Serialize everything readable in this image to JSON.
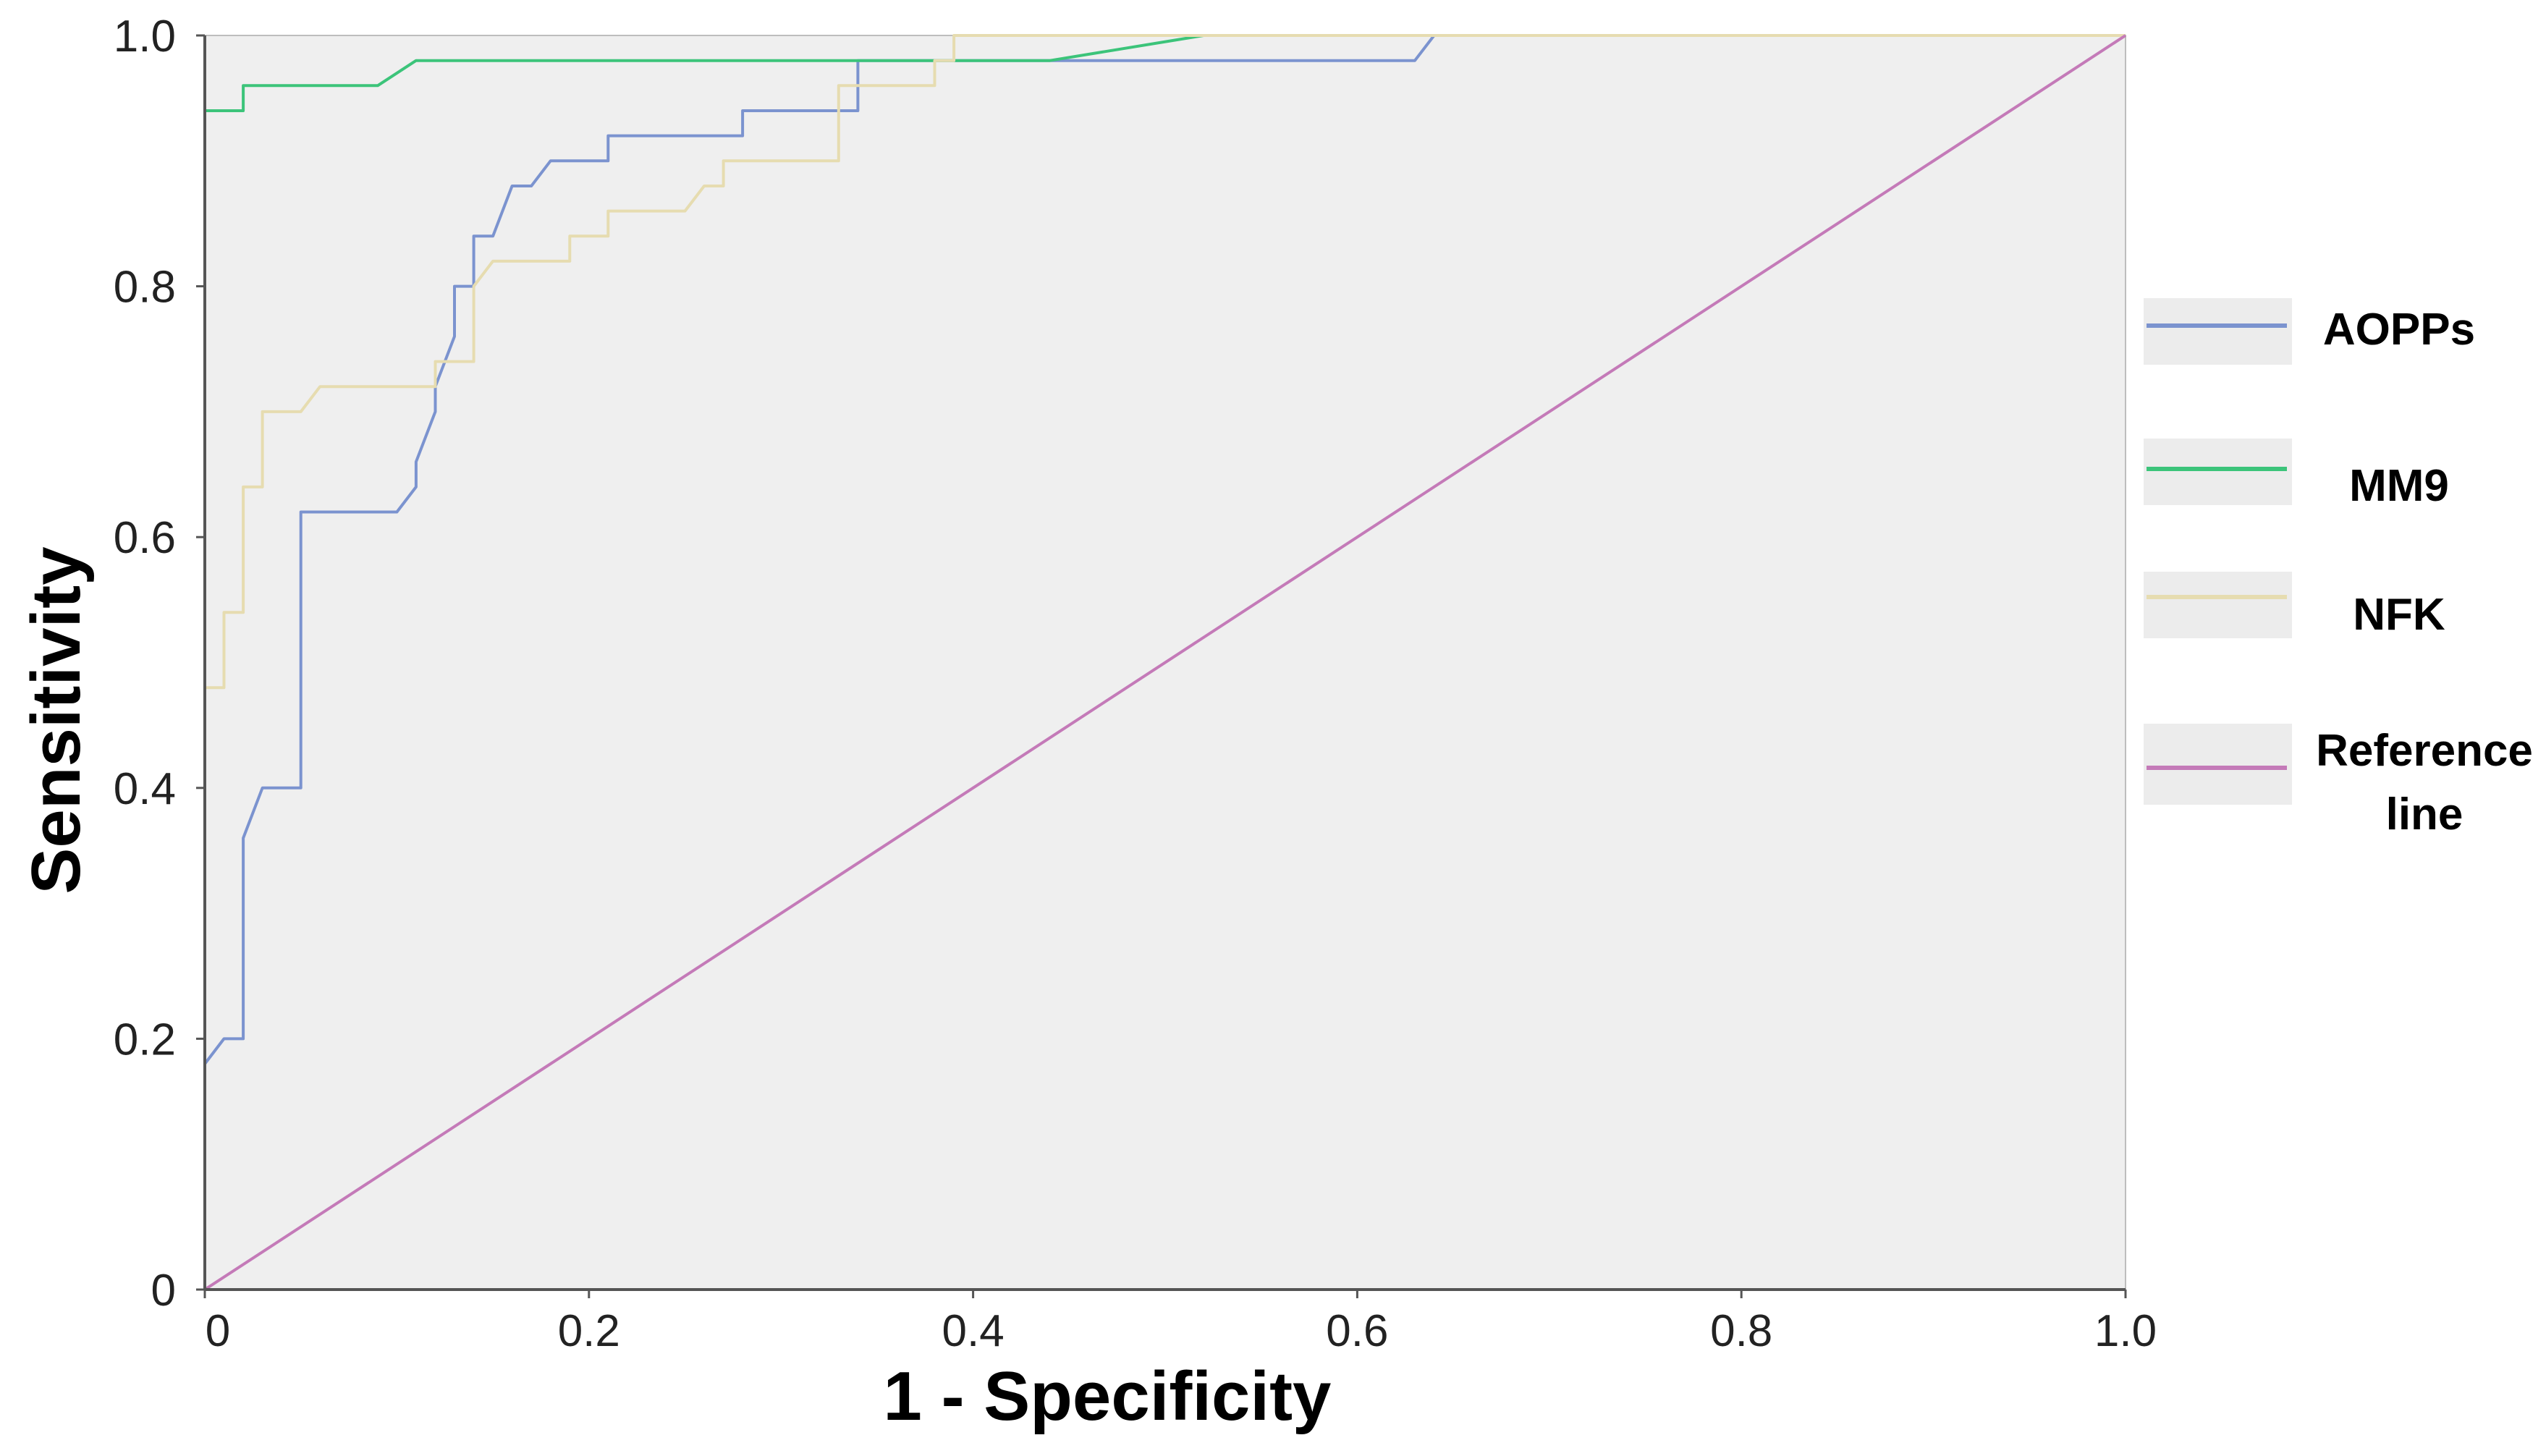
{
  "chart_data": {
    "type": "line",
    "title": "",
    "xlabel": "1 - Specificity",
    "ylabel": "Sensitivity",
    "xlim": [
      0,
      1
    ],
    "ylim": [
      0,
      1
    ],
    "x_ticks": [
      0,
      0.2,
      0.4,
      0.6,
      0.8,
      1.0
    ],
    "x_tick_labels": [
      "0",
      "0.2",
      "0.4",
      "0.6",
      "0.8",
      "1.0"
    ],
    "y_ticks": [
      0,
      0.2,
      0.4,
      0.6,
      0.8,
      1.0
    ],
    "y_tick_labels": [
      "0",
      "0.2",
      "0.4",
      "0.6",
      "0.8",
      "1.0"
    ],
    "grid": false,
    "legend_position": "right",
    "plot_background": "#efefef",
    "series": [
      {
        "name": "AOPPs",
        "color": "#7b93cf",
        "points": [
          [
            0,
            0.18
          ],
          [
            0.01,
            0.2
          ],
          [
            0.02,
            0.2
          ],
          [
            0.02,
            0.36
          ],
          [
            0.03,
            0.4
          ],
          [
            0.05,
            0.4
          ],
          [
            0.05,
            0.62
          ],
          [
            0.1,
            0.62
          ],
          [
            0.11,
            0.64
          ],
          [
            0.11,
            0.66
          ],
          [
            0.12,
            0.7
          ],
          [
            0.12,
            0.72
          ],
          [
            0.13,
            0.76
          ],
          [
            0.13,
            0.8
          ],
          [
            0.14,
            0.8
          ],
          [
            0.14,
            0.84
          ],
          [
            0.15,
            0.84
          ],
          [
            0.16,
            0.88
          ],
          [
            0.17,
            0.88
          ],
          [
            0.18,
            0.9
          ],
          [
            0.21,
            0.9
          ],
          [
            0.21,
            0.92
          ],
          [
            0.28,
            0.92
          ],
          [
            0.28,
            0.94
          ],
          [
            0.34,
            0.94
          ],
          [
            0.34,
            0.98
          ],
          [
            0.63,
            0.98
          ],
          [
            0.64,
            1.0
          ],
          [
            1.0,
            1.0
          ]
        ]
      },
      {
        "name": "MM9",
        "color": "#3cc47a",
        "points": [
          [
            0,
            0.94
          ],
          [
            0.02,
            0.94
          ],
          [
            0.02,
            0.96
          ],
          [
            0.09,
            0.96
          ],
          [
            0.11,
            0.98
          ],
          [
            0.44,
            0.98
          ],
          [
            0.52,
            1.0
          ],
          [
            1.0,
            1.0
          ]
        ]
      },
      {
        "name": "NFK",
        "color": "#e6dcb0",
        "points": [
          [
            0,
            0.48
          ],
          [
            0.01,
            0.48
          ],
          [
            0.01,
            0.54
          ],
          [
            0.02,
            0.54
          ],
          [
            0.02,
            0.64
          ],
          [
            0.03,
            0.64
          ],
          [
            0.03,
            0.7
          ],
          [
            0.05,
            0.7
          ],
          [
            0.06,
            0.72
          ],
          [
            0.12,
            0.72
          ],
          [
            0.12,
            0.74
          ],
          [
            0.14,
            0.74
          ],
          [
            0.14,
            0.8
          ],
          [
            0.15,
            0.82
          ],
          [
            0.19,
            0.82
          ],
          [
            0.19,
            0.84
          ],
          [
            0.21,
            0.84
          ],
          [
            0.21,
            0.86
          ],
          [
            0.25,
            0.86
          ],
          [
            0.26,
            0.88
          ],
          [
            0.27,
            0.88
          ],
          [
            0.27,
            0.9
          ],
          [
            0.33,
            0.9
          ],
          [
            0.33,
            0.96
          ],
          [
            0.38,
            0.96
          ],
          [
            0.38,
            0.98
          ],
          [
            0.39,
            0.98
          ],
          [
            0.39,
            1.0
          ],
          [
            1.0,
            1.0
          ]
        ]
      },
      {
        "name": "Reference line",
        "legend_lines": [
          "Reference",
          "line"
        ],
        "color": "#c47ab8",
        "points": [
          [
            0,
            0
          ],
          [
            1,
            1
          ]
        ]
      }
    ]
  }
}
